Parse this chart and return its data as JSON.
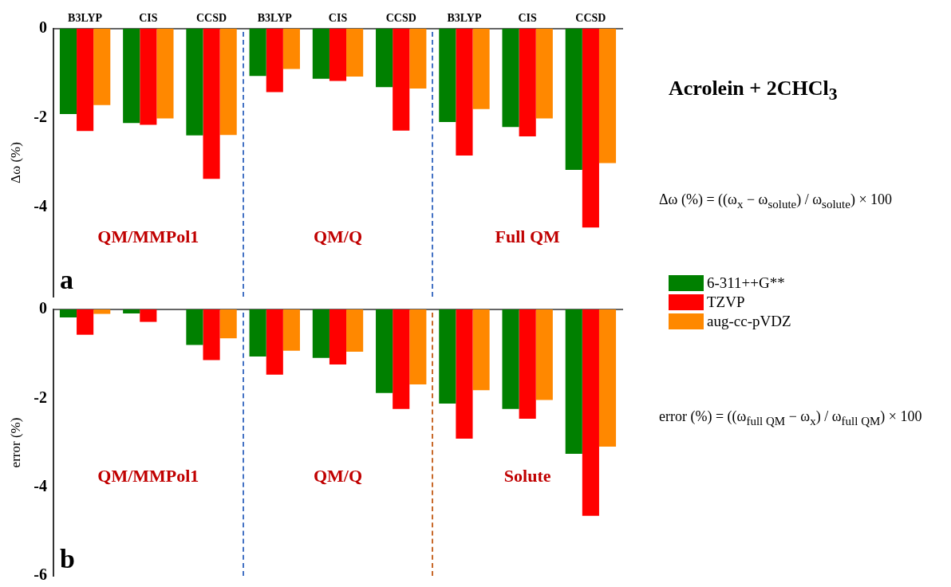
{
  "chart_data": [
    {
      "type": "bar",
      "ylabel": "Δω (%)",
      "categories": [
        "B3LYP",
        "CIS",
        "CCSD",
        "B3LYP",
        "CIS",
        "CCSD",
        "B3LYP",
        "CIS",
        "CCSD"
      ],
      "series": [
        {
          "name": "6-311++G**",
          "color": "#008000",
          "values": [
            -1.91,
            -2.11,
            -2.39,
            -1.06,
            -1.12,
            -1.31,
            -2.09,
            -2.2,
            -3.16
          ]
        },
        {
          "name": "TZVP",
          "color": "#ff0000",
          "values": [
            -2.29,
            -2.15,
            -3.36,
            -1.42,
            -1.17,
            -2.28,
            -2.84,
            -2.41,
            -4.45
          ]
        },
        {
          "name": "aug-cc-pVDZ",
          "color": "#ff8800",
          "values": [
            -1.71,
            -2.01,
            -2.38,
            -0.9,
            -1.07,
            -1.34,
            -1.8,
            -2.01,
            -3.01
          ]
        }
      ],
      "ylim": [
        -6,
        0
      ],
      "yticks": [
        0,
        -2,
        -4
      ],
      "grid": false,
      "legend": "right",
      "annotations": [
        "QM/MMPol1",
        "QM/Q",
        "Full QM",
        "a",
        "Δω (%) = ((ω$_{x}$ − ω$_{solute}$) / ω$_{solute}$) × 100"
      ]
    },
    {
      "type": "bar",
      "ylabel": "error (%)",
      "categories": [
        null,
        null,
        null,
        null,
        null,
        null,
        null,
        null,
        null
      ],
      "series": [
        {
          "color": "#008000",
          "values": [
            -0.18,
            -0.09,
            -0.8,
            -1.06,
            -1.09,
            -1.88,
            -2.12,
            -2.24,
            -3.25
          ]
        },
        {
          "color": "#ff0000",
          "values": [
            -0.57,
            -0.28,
            -1.14,
            -1.47,
            -1.24,
            -2.24,
            -2.91,
            -2.46,
            -4.65
          ]
        },
        {
          "color": "#ff8800",
          "values": [
            -0.1,
            0,
            -0.65,
            -0.93,
            -0.95,
            -1.69,
            -1.82,
            -2.04,
            -3.09
          ]
        }
      ],
      "ylim": [
        -6,
        0
      ],
      "yticks": [
        0,
        -2,
        -4,
        -6
      ],
      "grid": false,
      "tick_labels": "y",
      "annotations": [
        "QM/MMPol1",
        "QM/Q",
        "Solute",
        "b",
        "error (%) = ((ω$_{full QM}$ − ω$_{x}$) / ω$_{full QM}$) × 100"
      ]
    },
    {
      "type": "other",
      "title": "Acrolein + 2CHCl$_{3}$"
    }
  ]
}
